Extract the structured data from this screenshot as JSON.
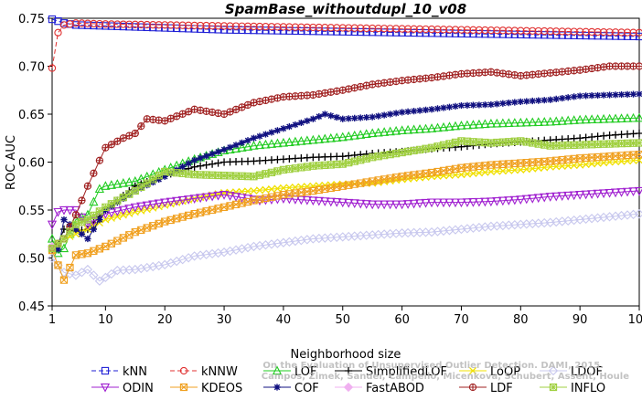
{
  "chart_data": {
    "type": "line",
    "title": "SpamBase_withoutdupl_10_v08",
    "xlabel": "Neighborhood size",
    "ylabel": "ROC AUC",
    "xlim": [
      1,
      100
    ],
    "ylim": [
      0.45,
      0.75
    ],
    "x_ticks": [
      1,
      10,
      20,
      30,
      40,
      50,
      60,
      70,
      80,
      90,
      100
    ],
    "y_ticks": [
      "0.45",
      "0.50",
      "0.55",
      "0.60",
      "0.65",
      "0.70",
      "0.75"
    ],
    "grid": false,
    "legend_position": "bottom",
    "watermark": "Campos, Zimek, Sander, Campello, Micenkova, Schubert, Assent, Houle\nOn the Evaluation of Unsupervised Outlier Detection. DAMI, 2015.",
    "series": [
      {
        "name": "kNN",
        "color": "#1f1fd6",
        "marker": "square",
        "dash": "5,3",
        "points": [
          [
            1,
            0.749
          ],
          [
            2,
            0.747
          ],
          [
            3,
            0.745
          ],
          [
            5,
            0.743
          ],
          [
            10,
            0.742
          ],
          [
            20,
            0.74
          ],
          [
            30,
            0.738
          ],
          [
            40,
            0.737
          ],
          [
            50,
            0.736
          ],
          [
            60,
            0.735
          ],
          [
            70,
            0.734
          ],
          [
            80,
            0.733
          ],
          [
            90,
            0.732
          ],
          [
            100,
            0.731
          ]
        ]
      },
      {
        "name": "kNNW",
        "color": "#e03030",
        "marker": "circle",
        "dash": "5,3",
        "points": [
          [
            1,
            0.698
          ],
          [
            2,
            0.735
          ],
          [
            3,
            0.743
          ],
          [
            5,
            0.745
          ],
          [
            10,
            0.744
          ],
          [
            20,
            0.743
          ],
          [
            30,
            0.742
          ],
          [
            40,
            0.741
          ],
          [
            50,
            0.74
          ],
          [
            60,
            0.739
          ],
          [
            70,
            0.738
          ],
          [
            80,
            0.737
          ],
          [
            90,
            0.736
          ],
          [
            100,
            0.735
          ]
        ]
      },
      {
        "name": "LOF",
        "color": "#22cc22",
        "marker": "triangle-up",
        "dash": "",
        "points": [
          [
            1,
            0.52
          ],
          [
            2,
            0.505
          ],
          [
            3,
            0.51
          ],
          [
            5,
            0.54
          ],
          [
            7,
            0.545
          ],
          [
            9,
            0.572
          ],
          [
            10,
            0.575
          ],
          [
            15,
            0.58
          ],
          [
            20,
            0.592
          ],
          [
            25,
            0.603
          ],
          [
            30,
            0.612
          ],
          [
            35,
            0.617
          ],
          [
            40,
            0.62
          ],
          [
            45,
            0.623
          ],
          [
            50,
            0.626
          ],
          [
            55,
            0.63
          ],
          [
            60,
            0.633
          ],
          [
            65,
            0.635
          ],
          [
            70,
            0.638
          ],
          [
            75,
            0.64
          ],
          [
            80,
            0.641
          ],
          [
            85,
            0.642
          ],
          [
            90,
            0.644
          ],
          [
            95,
            0.645
          ],
          [
            100,
            0.646
          ]
        ]
      },
      {
        "name": "SimplifiedLOF",
        "color": "#000000",
        "marker": "plus",
        "dash": "",
        "points": [
          [
            1,
            0.512
          ],
          [
            2,
            0.515
          ],
          [
            3,
            0.53
          ],
          [
            5,
            0.528
          ],
          [
            7,
            0.53
          ],
          [
            10,
            0.55
          ],
          [
            15,
            0.575
          ],
          [
            20,
            0.586
          ],
          [
            25,
            0.595
          ],
          [
            30,
            0.6
          ],
          [
            35,
            0.601
          ],
          [
            40,
            0.603
          ],
          [
            45,
            0.605
          ],
          [
            50,
            0.606
          ],
          [
            55,
            0.609
          ],
          [
            60,
            0.611
          ],
          [
            65,
            0.614
          ],
          [
            70,
            0.616
          ],
          [
            75,
            0.619
          ],
          [
            80,
            0.621
          ],
          [
            85,
            0.623
          ],
          [
            90,
            0.625
          ],
          [
            95,
            0.628
          ],
          [
            100,
            0.63
          ]
        ]
      },
      {
        "name": "LoOP",
        "color": "#f0e000",
        "marker": "cross",
        "dash": "",
        "points": [
          [
            1,
            0.51
          ],
          [
            3,
            0.52
          ],
          [
            5,
            0.525
          ],
          [
            7,
            0.53
          ],
          [
            10,
            0.54
          ],
          [
            15,
            0.548
          ],
          [
            20,
            0.555
          ],
          [
            25,
            0.562
          ],
          [
            30,
            0.568
          ],
          [
            35,
            0.57
          ],
          [
            40,
            0.573
          ],
          [
            45,
            0.575
          ],
          [
            50,
            0.577
          ],
          [
            55,
            0.578
          ],
          [
            60,
            0.582
          ],
          [
            65,
            0.585
          ],
          [
            70,
            0.587
          ],
          [
            75,
            0.59
          ],
          [
            80,
            0.592
          ],
          [
            85,
            0.595
          ],
          [
            90,
            0.597
          ],
          [
            95,
            0.6
          ],
          [
            100,
            0.602
          ]
        ]
      },
      {
        "name": "LDOF",
        "color": "#c8c8ee",
        "marker": "diamond",
        "dash": "",
        "points": [
          [
            1,
            0.5
          ],
          [
            3,
            0.485
          ],
          [
            5,
            0.482
          ],
          [
            7,
            0.488
          ],
          [
            9,
            0.476
          ],
          [
            12,
            0.487
          ],
          [
            15,
            0.488
          ],
          [
            20,
            0.493
          ],
          [
            25,
            0.502
          ],
          [
            30,
            0.506
          ],
          [
            35,
            0.512
          ],
          [
            40,
            0.516
          ],
          [
            45,
            0.52
          ],
          [
            50,
            0.522
          ],
          [
            55,
            0.524
          ],
          [
            60,
            0.526
          ],
          [
            65,
            0.527
          ],
          [
            70,
            0.53
          ],
          [
            75,
            0.533
          ],
          [
            80,
            0.535
          ],
          [
            85,
            0.537
          ],
          [
            90,
            0.54
          ],
          [
            95,
            0.543
          ],
          [
            100,
            0.546
          ]
        ]
      },
      {
        "name": "ODIN",
        "color": "#a020d0",
        "marker": "triangle-down",
        "dash": "",
        "points": [
          [
            1,
            0.535
          ],
          [
            2,
            0.548
          ],
          [
            3,
            0.55
          ],
          [
            5,
            0.55
          ],
          [
            7,
            0.535
          ],
          [
            10,
            0.546
          ],
          [
            15,
            0.553
          ],
          [
            20,
            0.558
          ],
          [
            25,
            0.562
          ],
          [
            30,
            0.566
          ],
          [
            33,
            0.563
          ],
          [
            36,
            0.56
          ],
          [
            40,
            0.562
          ],
          [
            45,
            0.56
          ],
          [
            50,
            0.558
          ],
          [
            55,
            0.556
          ],
          [
            60,
            0.556
          ],
          [
            65,
            0.558
          ],
          [
            70,
            0.558
          ],
          [
            75,
            0.559
          ],
          [
            80,
            0.561
          ],
          [
            85,
            0.564
          ],
          [
            90,
            0.566
          ],
          [
            95,
            0.568
          ],
          [
            100,
            0.57
          ]
        ]
      },
      {
        "name": "KDEOS",
        "color": "#f0a020",
        "marker": "square-x",
        "dash": "",
        "points": [
          [
            1,
            0.508
          ],
          [
            3,
            0.477
          ],
          [
            5,
            0.503
          ],
          [
            7,
            0.505
          ],
          [
            10,
            0.512
          ],
          [
            15,
            0.527
          ],
          [
            20,
            0.538
          ],
          [
            25,
            0.546
          ],
          [
            30,
            0.553
          ],
          [
            35,
            0.56
          ],
          [
            40,
            0.566
          ],
          [
            45,
            0.57
          ],
          [
            50,
            0.575
          ],
          [
            55,
            0.58
          ],
          [
            60,
            0.585
          ],
          [
            65,
            0.589
          ],
          [
            70,
            0.594
          ],
          [
            75,
            0.597
          ],
          [
            80,
            0.599
          ],
          [
            85,
            0.601
          ],
          [
            90,
            0.604
          ],
          [
            95,
            0.606
          ],
          [
            100,
            0.608
          ]
        ]
      },
      {
        "name": "COF",
        "color": "#101080",
        "marker": "asterisk",
        "dash": "",
        "points": [
          [
            1,
            0.512
          ],
          [
            2,
            0.509
          ],
          [
            3,
            0.54
          ],
          [
            5,
            0.53
          ],
          [
            7,
            0.52
          ],
          [
            10,
            0.55
          ],
          [
            15,
            0.57
          ],
          [
            20,
            0.585
          ],
          [
            25,
            0.602
          ],
          [
            30,
            0.613
          ],
          [
            35,
            0.625
          ],
          [
            40,
            0.635
          ],
          [
            45,
            0.645
          ],
          [
            47,
            0.65
          ],
          [
            50,
            0.645
          ],
          [
            55,
            0.647
          ],
          [
            60,
            0.652
          ],
          [
            65,
            0.655
          ],
          [
            70,
            0.659
          ],
          [
            75,
            0.66
          ],
          [
            80,
            0.663
          ],
          [
            85,
            0.665
          ],
          [
            90,
            0.669
          ],
          [
            95,
            0.67
          ],
          [
            100,
            0.671
          ]
        ]
      },
      {
        "name": "FastABOD",
        "color": "#f0b0f0",
        "marker": "diamond-filled",
        "dash": "",
        "points": [
          [
            1,
            0.512
          ]
        ]
      },
      {
        "name": "LDF",
        "color": "#a02020",
        "marker": "circle-plus",
        "dash": "",
        "points": [
          [
            1,
            0.51
          ],
          [
            3,
            0.52
          ],
          [
            5,
            0.545
          ],
          [
            7,
            0.575
          ],
          [
            10,
            0.615
          ],
          [
            13,
            0.625
          ],
          [
            15,
            0.63
          ],
          [
            17,
            0.645
          ],
          [
            20,
            0.643
          ],
          [
            25,
            0.655
          ],
          [
            30,
            0.65
          ],
          [
            35,
            0.662
          ],
          [
            40,
            0.668
          ],
          [
            45,
            0.67
          ],
          [
            50,
            0.675
          ],
          [
            55,
            0.681
          ],
          [
            60,
            0.685
          ],
          [
            65,
            0.688
          ],
          [
            70,
            0.692
          ],
          [
            75,
            0.694
          ],
          [
            80,
            0.69
          ],
          [
            85,
            0.693
          ],
          [
            90,
            0.696
          ],
          [
            95,
            0.7
          ],
          [
            100,
            0.7
          ]
        ]
      },
      {
        "name": "INFLO",
        "color": "#a0d040",
        "marker": "square-star",
        "dash": "",
        "points": [
          [
            1,
            0.51
          ],
          [
            3,
            0.52
          ],
          [
            5,
            0.535
          ],
          [
            7,
            0.54
          ],
          [
            10,
            0.553
          ],
          [
            15,
            0.57
          ],
          [
            20,
            0.59
          ],
          [
            25,
            0.587
          ],
          [
            30,
            0.586
          ],
          [
            35,
            0.585
          ],
          [
            40,
            0.592
          ],
          [
            45,
            0.596
          ],
          [
            50,
            0.598
          ],
          [
            55,
            0.605
          ],
          [
            60,
            0.61
          ],
          [
            65,
            0.615
          ],
          [
            70,
            0.622
          ],
          [
            75,
            0.62
          ],
          [
            80,
            0.622
          ],
          [
            85,
            0.617
          ],
          [
            90,
            0.618
          ],
          [
            95,
            0.619
          ],
          [
            100,
            0.62
          ]
        ]
      }
    ]
  },
  "legend_rows": [
    [
      "kNN",
      "kNNW",
      "LOF",
      "SimplifiedLOF",
      "LoOP",
      "LDOF"
    ],
    [
      "ODIN",
      "KDEOS",
      "COF",
      "FastABOD",
      "LDF",
      "INFLO"
    ]
  ]
}
